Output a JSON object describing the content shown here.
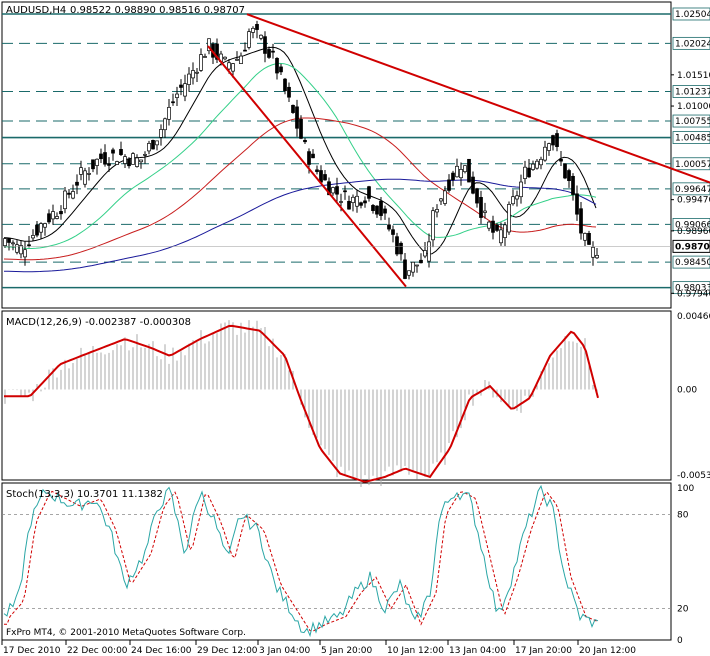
{
  "chart_data": [
    {
      "type": "candlestick",
      "symbol_header": "AUDUSD,H4",
      "ohlc_header": "0.98522 0.98890 0.98516 0.98707",
      "ylim": [
        0.977,
        1.027
      ],
      "ticks": [
        "1.01510",
        "1.01000",
        "0.99470",
        "0.98960",
        "0.97940"
      ],
      "levels": [
        {
          "value": "1.02504",
          "style": "solid"
        },
        {
          "value": "1.02024",
          "style": "dashed"
        },
        {
          "value": "1.01237",
          "style": "dashed"
        },
        {
          "value": "1.00755",
          "style": "dashed"
        },
        {
          "value": "1.00485",
          "style": "solid"
        },
        {
          "value": "1.00057",
          "style": "dashed"
        },
        {
          "value": "0.99647",
          "style": "dashed"
        },
        {
          "value": "0.99066",
          "style": "dashed"
        },
        {
          "value": "0.98450",
          "style": "dashed"
        },
        {
          "value": "0.98033",
          "style": "solid"
        }
      ],
      "current_price": "0.98707",
      "trendlines": [
        {
          "from": [
            247,
            1.025
          ],
          "to": [
            710,
            0.9975
          ]
        },
        {
          "from": [
            208,
            1.0198
          ],
          "to": [
            406,
            0.9805
          ]
        }
      ],
      "colors": {
        "bull": "#ffffff",
        "bear": "#000000",
        "trend": "#d00000",
        "level": "#1a6a6a",
        "ma_black": "#000000",
        "ma_green": "#34d089",
        "ma_red": "#c81e1e",
        "ma_blue": "#1a1a9a",
        "current": "#000000"
      }
    },
    {
      "type": "histogram+line",
      "label": "MACD(12,26,9) -0.002387 -0.000308",
      "ticks": [
        "0.004668",
        "0.00",
        "-0.005384"
      ],
      "ylim": [
        -0.005384,
        0.004668
      ],
      "signal_color": "#d00000",
      "hist_color": "#aaaaaa"
    },
    {
      "type": "line",
      "label": "Stoch(13,3,3) 10.3701 11.1382",
      "ticks": [
        "100",
        "80",
        "20",
        "0"
      ],
      "ylim": [
        0,
        100
      ],
      "main_color": "#2aa6a6",
      "signal_color": "#d00000"
    }
  ],
  "x_labels": [
    "17 Dec 2010",
    "22 Dec 00:00",
    "24 Dec 16:00",
    "29 Dec 12:00",
    "3 Jan 04:00",
    "5 Jan 20:00",
    "10 Jan 12:00",
    "13 Jan 04:00",
    "17 Jan 20:00",
    "20 Jan 12:00"
  ],
  "copyright": "FxPro MT4, © 2001-2010 MetaQuotes Software Corp."
}
